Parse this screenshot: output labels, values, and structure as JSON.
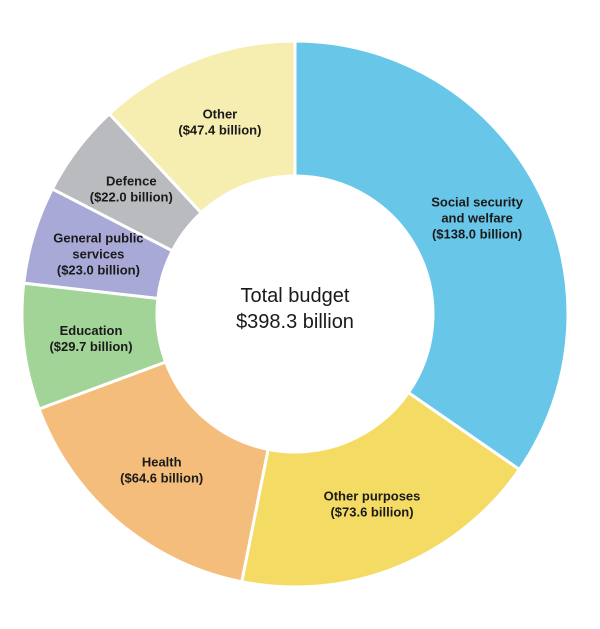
{
  "chart_data": {
    "type": "pie",
    "donut": true,
    "total_label_line1": "Total budget",
    "total_label_line2": "$398.3 billion",
    "slices": [
      {
        "name_lines": [
          "Social security",
          "and welfare"
        ],
        "value_label": "($138.0 billion)",
        "value": 138.0,
        "color": "#68C6E9"
      },
      {
        "name_lines": [
          "Other purposes"
        ],
        "value_label": "($73.6 billion)",
        "value": 73.6,
        "color": "#F4DC64"
      },
      {
        "name_lines": [
          "Health"
        ],
        "value_label": "($64.6 billion)",
        "value": 64.6,
        "color": "#F4BD7B"
      },
      {
        "name_lines": [
          "Education"
        ],
        "value_label": "($29.7 billion)",
        "value": 29.7,
        "color": "#A2D497"
      },
      {
        "name_lines": [
          "General public",
          "services"
        ],
        "value_label": "($23.0 billion)",
        "value": 23.0,
        "color": "#A9A9D7"
      },
      {
        "name_lines": [
          "Defence"
        ],
        "value_label": "($22.0 billion)",
        "value": 22.0,
        "color": "#B9BBBE"
      },
      {
        "name_lines": [
          "Other"
        ],
        "value_label": "($47.4 billion)",
        "value": 47.4,
        "color": "#F6EDB0"
      }
    ]
  }
}
